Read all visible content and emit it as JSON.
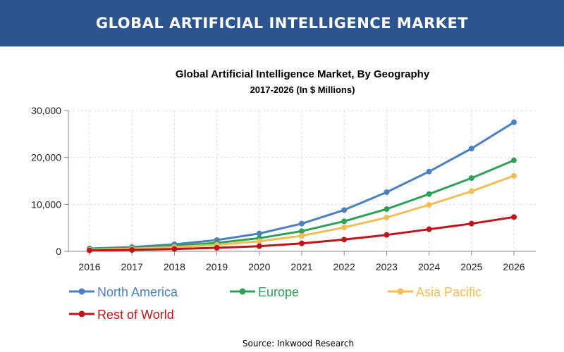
{
  "banner": {
    "title": "GLOBAL ARTIFICIAL INTELLIGENCE MARKET"
  },
  "chart_data": {
    "type": "line",
    "title": "Global Artificial Intelligence Market, By Geography",
    "subtitle": "2017-2026 (In $ Millions)",
    "xlabel": "",
    "ylabel": "",
    "x": [
      "2016",
      "2017",
      "2018",
      "2019",
      "2020",
      "2021",
      "2022",
      "2023",
      "2024",
      "2025",
      "2026"
    ],
    "ylim": [
      0,
      30000
    ],
    "yticks": [
      0,
      10000,
      20000,
      30000
    ],
    "ytick_labels": [
      "0",
      "10,000",
      "20,000",
      "30,000"
    ],
    "grid": true,
    "legend_position": "bottom",
    "series": [
      {
        "name": "North America",
        "color": "#4a7fc1",
        "values": [
          600,
          900,
          1500,
          2400,
          3800,
          5900,
          8800,
          12600,
          17000,
          21900,
          27500
        ]
      },
      {
        "name": "Europe",
        "color": "#2ea05a",
        "values": [
          450,
          700,
          1150,
          1800,
          2800,
          4300,
          6400,
          9000,
          12200,
          15600,
          19400
        ]
      },
      {
        "name": "Asia Pacific",
        "color": "#f2bd55",
        "values": [
          350,
          550,
          900,
          1400,
          2150,
          3300,
          5100,
          7200,
          9900,
          12800,
          16100
        ]
      },
      {
        "name": "Rest of World",
        "color": "#c0141b",
        "values": [
          200,
          300,
          500,
          750,
          1100,
          1700,
          2500,
          3500,
          4700,
          5900,
          7300
        ]
      }
    ]
  },
  "source": "Source: Inkwood Research"
}
